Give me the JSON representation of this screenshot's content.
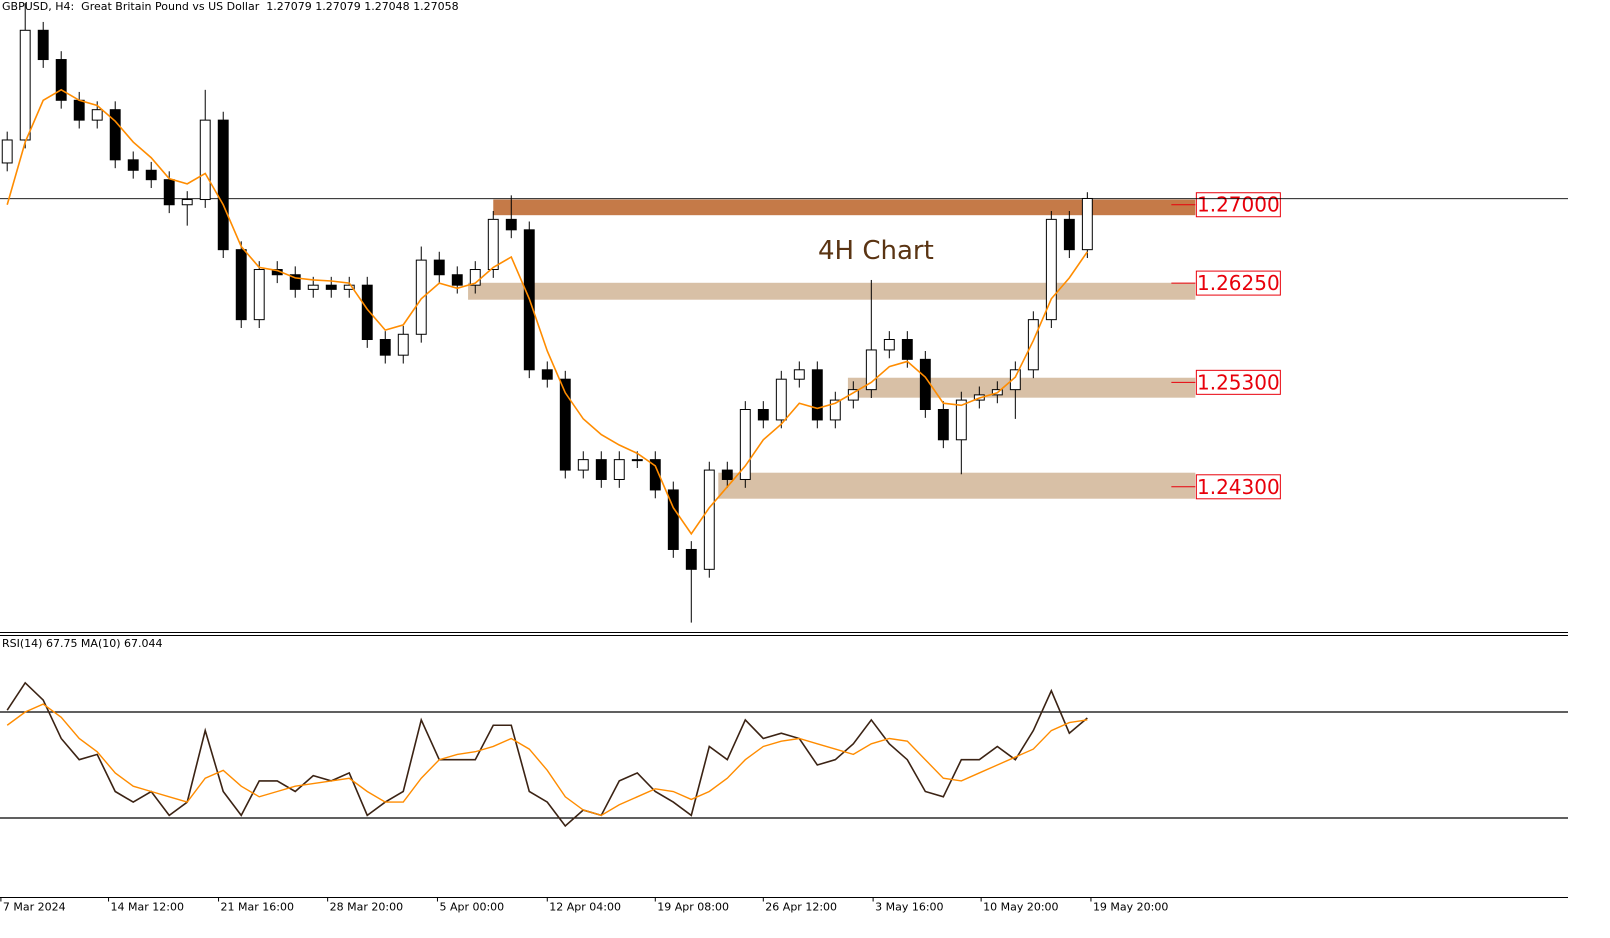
{
  "chart_data": [
    {
      "type": "candlestick",
      "title": "GBPUSD, H4:  Great Britain Pound vs US Dollar  1.27079 1.27079 1.27048 1.27058",
      "annotation": "4H Chart",
      "xlim": [
        -0.4,
        86.7
      ],
      "ylim": [
        1.2291,
        1.2896
      ],
      "up_color": "#ffffff",
      "down_color": "#000000",
      "edge_color": "#000000",
      "open": [
        1.274,
        1.2762,
        1.2867,
        1.2839,
        1.28,
        1.2781,
        1.2791,
        1.2743,
        1.2733,
        1.2724,
        1.27,
        1.2705,
        1.2781,
        1.2657,
        1.259,
        1.2638,
        1.2633,
        1.2619,
        1.2623,
        1.2619,
        1.2623,
        1.2571,
        1.2556,
        1.2576,
        1.2647,
        1.2633,
        1.2623,
        1.2638,
        1.2686,
        1.2676,
        1.2542,
        1.2533,
        1.2446,
        1.2456,
        1.2437,
        1.2456,
        1.2456,
        1.2427,
        1.237,
        1.2351,
        1.2446,
        1.2437,
        1.2504,
        1.2494,
        1.2533,
        1.2542,
        1.2494,
        1.2513,
        1.2523,
        1.2561,
        1.2571,
        1.2552,
        1.2504,
        1.2475,
        1.2513,
        1.2518,
        1.2523,
        1.2542,
        1.259,
        1.2686,
        1.2657
      ],
      "high": [
        1.277,
        1.2893,
        1.2875,
        1.2847,
        1.2808,
        1.2799,
        1.2799,
        1.2751,
        1.2741,
        1.2732,
        1.2713,
        1.281,
        1.2789,
        1.2665,
        1.2646,
        1.2646,
        1.2641,
        1.2631,
        1.2631,
        1.2631,
        1.2631,
        1.2579,
        1.2584,
        1.266,
        1.2655,
        1.2641,
        1.2646,
        1.2694,
        1.2709,
        1.2684,
        1.255,
        1.2541,
        1.2464,
        1.2464,
        1.2464,
        1.2464,
        1.2464,
        1.2435,
        1.2378,
        1.2454,
        1.2454,
        1.2512,
        1.2512,
        1.2541,
        1.255,
        1.255,
        1.2521,
        1.2531,
        1.2628,
        1.2579,
        1.2579,
        1.256,
        1.2512,
        1.2521,
        1.2526,
        1.2531,
        1.255,
        1.2598,
        1.2694,
        1.2694,
        1.2712
      ],
      "low": [
        1.2732,
        1.2754,
        1.2831,
        1.2792,
        1.2773,
        1.2773,
        1.2735,
        1.2725,
        1.2716,
        1.2692,
        1.268,
        1.2697,
        1.2649,
        1.2582,
        1.2582,
        1.2625,
        1.2611,
        1.2611,
        1.2611,
        1.2611,
        1.2563,
        1.2548,
        1.2548,
        1.2568,
        1.2625,
        1.2615,
        1.2615,
        1.263,
        1.2668,
        1.2534,
        1.2525,
        1.2438,
        1.2438,
        1.2429,
        1.2429,
        1.2448,
        1.2419,
        1.2362,
        1.23,
        1.2343,
        1.2429,
        1.2429,
        1.2486,
        1.2486,
        1.2525,
        1.2486,
        1.2486,
        1.2505,
        1.2515,
        1.2553,
        1.2544,
        1.2496,
        1.2467,
        1.2442,
        1.2505,
        1.251,
        1.2495,
        1.2534,
        1.2582,
        1.2649,
        1.2649
      ],
      "close": [
        1.2762,
        1.2867,
        1.2839,
        1.28,
        1.2781,
        1.2791,
        1.2743,
        1.2733,
        1.2724,
        1.27,
        1.2705,
        1.2781,
        1.2657,
        1.259,
        1.2638,
        1.2633,
        1.2619,
        1.2623,
        1.2619,
        1.2623,
        1.2571,
        1.2556,
        1.2576,
        1.2647,
        1.2633,
        1.2623,
        1.2638,
        1.2686,
        1.2676,
        1.2542,
        1.2533,
        1.2446,
        1.2456,
        1.2437,
        1.2456,
        1.2456,
        1.2427,
        1.237,
        1.2351,
        1.2446,
        1.2437,
        1.2504,
        1.2494,
        1.2533,
        1.2542,
        1.2494,
        1.2513,
        1.2523,
        1.2561,
        1.2571,
        1.2552,
        1.2504,
        1.2475,
        1.2513,
        1.2518,
        1.2523,
        1.2542,
        1.259,
        1.2686,
        1.2657,
        1.2706
      ],
      "ma": {
        "color": "#ff8c00",
        "values": [
          1.27,
          1.276,
          1.28,
          1.281,
          1.28,
          1.2795,
          1.278,
          1.276,
          1.2745,
          1.2725,
          1.272,
          1.273,
          1.27,
          1.266,
          1.264,
          1.2637,
          1.263,
          1.2628,
          1.2627,
          1.2625,
          1.26,
          1.258,
          1.2585,
          1.261,
          1.2625,
          1.262,
          1.2625,
          1.264,
          1.265,
          1.261,
          1.256,
          1.252,
          1.2495,
          1.248,
          1.247,
          1.2462,
          1.245,
          1.241,
          1.2385,
          1.241,
          1.243,
          1.245,
          1.2475,
          1.249,
          1.251,
          1.2505,
          1.251,
          1.252,
          1.253,
          1.2545,
          1.255,
          1.2535,
          1.251,
          1.2508,
          1.2515,
          1.252,
          1.2535,
          1.257,
          1.261,
          1.263,
          1.2655
        ]
      },
      "price_line": 1.27058,
      "zone_end": 66.0,
      "label_color": "#e8000b",
      "zones": [
        {
          "label": "1.27000",
          "value": 1.27,
          "top": 1.2705,
          "bottom": 1.269,
          "start": 27.0,
          "color": "#c57a48"
        },
        {
          "label": "1.26250",
          "value": 1.2625,
          "top": 1.26253,
          "bottom": 1.26091,
          "start": 25.6,
          "color": "#d8c0a6"
        },
        {
          "label": "1.25300",
          "value": 1.253,
          "top": 1.25344,
          "bottom": 1.25153,
          "start": 46.7,
          "color": "#d8c0a6"
        },
        {
          "label": "1.24300",
          "value": 1.243,
          "top": 1.24435,
          "bottom": 1.24186,
          "start": 39.5,
          "color": "#d8c0a6"
        }
      ]
    },
    {
      "type": "line",
      "title": "RSI(14) 67.75 MA(10) 67.044",
      "xlim": [
        -0.4,
        86.7
      ],
      "ylim": [
        0,
        100
      ],
      "levels": [
        70,
        30
      ],
      "xticks": [
        {
          "value": -0.35,
          "label": "7 Mar 2024"
        },
        {
          "value": 5.63,
          "label": "14 Mar 12:00"
        },
        {
          "value": 11.74,
          "label": "21 Mar 16:00"
        },
        {
          "value": 17.8,
          "label": "28 Mar 20:00"
        },
        {
          "value": 23.9,
          "label": "5 Apr 00:00"
        },
        {
          "value": 30.0,
          "label": "12 Apr 04:00"
        },
        {
          "value": 36.0,
          "label": "19 Apr 08:00"
        },
        {
          "value": 42.0,
          "label": "26 Apr 12:00"
        },
        {
          "value": 48.1,
          "label": "3 May 16:00"
        },
        {
          "value": 54.1,
          "label": "10 May 20:00"
        },
        {
          "value": 60.2,
          "label": "19 May 20:00"
        }
      ],
      "series": [
        {
          "color": "#3b2314",
          "values": [
            70.7,
            81,
            74.5,
            60,
            52,
            54,
            40,
            36,
            40,
            31,
            36,
            63,
            40,
            31,
            44,
            44,
            40,
            46,
            44,
            47,
            31,
            36,
            40,
            67,
            52,
            52,
            52,
            65,
            65,
            40,
            36,
            27,
            33,
            31,
            44,
            47,
            40,
            36,
            31,
            57,
            52,
            67,
            60,
            62,
            60,
            50,
            52,
            58,
            67,
            58,
            52,
            40,
            38,
            52,
            52,
            57,
            52,
            63,
            78,
            62,
            67.75
          ]
        },
        {
          "color": "#ff8c00",
          "values": [
            65,
            70,
            73,
            68,
            60,
            55,
            47,
            42,
            40,
            38,
            36,
            45,
            48,
            42,
            38,
            40,
            42,
            43,
            44,
            45,
            40,
            36,
            36,
            45,
            52,
            54,
            55,
            57,
            60,
            56,
            48,
            38,
            33,
            31,
            35,
            38,
            41,
            40,
            37,
            40,
            45,
            52,
            57,
            59,
            60,
            58,
            56,
            54,
            58,
            60,
            59,
            52,
            45,
            44,
            47,
            50,
            53,
            56,
            63,
            66,
            67.044
          ]
        }
      ]
    }
  ]
}
